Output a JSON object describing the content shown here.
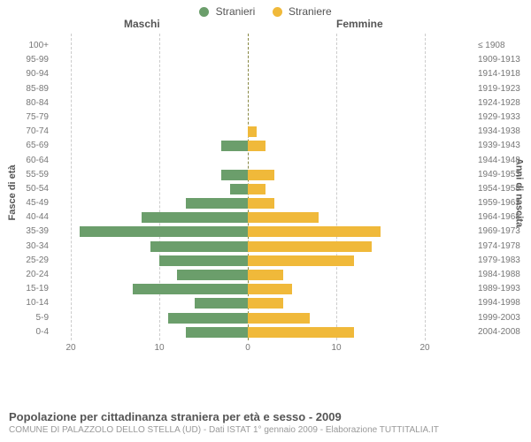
{
  "chart": {
    "type": "population-pyramid",
    "legend": {
      "male_label": "Stranieri",
      "female_label": "Straniere",
      "male_color": "#6b9e6b",
      "female_color": "#f0b93a"
    },
    "header_left": "Maschi",
    "header_right": "Femmine",
    "y_axis_left_title": "Fasce di età",
    "y_axis_right_title": "Anni di nascita",
    "title": "Popolazione per cittadinanza straniera per età e sesso - 2009",
    "subtitle": "COMUNE DI PALAZZOLO DELLO STELLA (UD) - Dati ISTAT 1° gennaio 2009 - Elaborazione TUTTITALIA.IT",
    "xlim": 22,
    "x_ticks": [
      20,
      10,
      0,
      10,
      20
    ],
    "x_tick_labels": [
      "20",
      "10",
      "0",
      "10",
      "20"
    ],
    "grid_color": "#cccccc",
    "center_line_color": "#888844",
    "background_color": "#ffffff",
    "label_fontsize": 10,
    "rows": [
      {
        "age": "100+",
        "birth": "≤ 1908",
        "m": 0,
        "f": 0
      },
      {
        "age": "95-99",
        "birth": "1909-1913",
        "m": 0,
        "f": 0
      },
      {
        "age": "90-94",
        "birth": "1914-1918",
        "m": 0,
        "f": 0
      },
      {
        "age": "85-89",
        "birth": "1919-1923",
        "m": 0,
        "f": 0
      },
      {
        "age": "80-84",
        "birth": "1924-1928",
        "m": 0,
        "f": 0
      },
      {
        "age": "75-79",
        "birth": "1929-1933",
        "m": 0,
        "f": 0
      },
      {
        "age": "70-74",
        "birth": "1934-1938",
        "m": 0,
        "f": 1
      },
      {
        "age": "65-69",
        "birth": "1939-1943",
        "m": 3,
        "f": 2
      },
      {
        "age": "60-64",
        "birth": "1944-1948",
        "m": 0,
        "f": 0
      },
      {
        "age": "55-59",
        "birth": "1949-1953",
        "m": 3,
        "f": 3
      },
      {
        "age": "50-54",
        "birth": "1954-1958",
        "m": 2,
        "f": 2
      },
      {
        "age": "45-49",
        "birth": "1959-1963",
        "m": 7,
        "f": 3
      },
      {
        "age": "40-44",
        "birth": "1964-1968",
        "m": 12,
        "f": 8
      },
      {
        "age": "35-39",
        "birth": "1969-1973",
        "m": 19,
        "f": 15
      },
      {
        "age": "30-34",
        "birth": "1974-1978",
        "m": 11,
        "f": 14
      },
      {
        "age": "25-29",
        "birth": "1979-1983",
        "m": 10,
        "f": 12
      },
      {
        "age": "20-24",
        "birth": "1984-1988",
        "m": 8,
        "f": 4
      },
      {
        "age": "15-19",
        "birth": "1989-1993",
        "m": 13,
        "f": 5
      },
      {
        "age": "10-14",
        "birth": "1994-1998",
        "m": 6,
        "f": 4
      },
      {
        "age": "5-9",
        "birth": "1999-2003",
        "m": 9,
        "f": 7
      },
      {
        "age": "0-4",
        "birth": "2004-2008",
        "m": 7,
        "f": 12
      }
    ]
  }
}
